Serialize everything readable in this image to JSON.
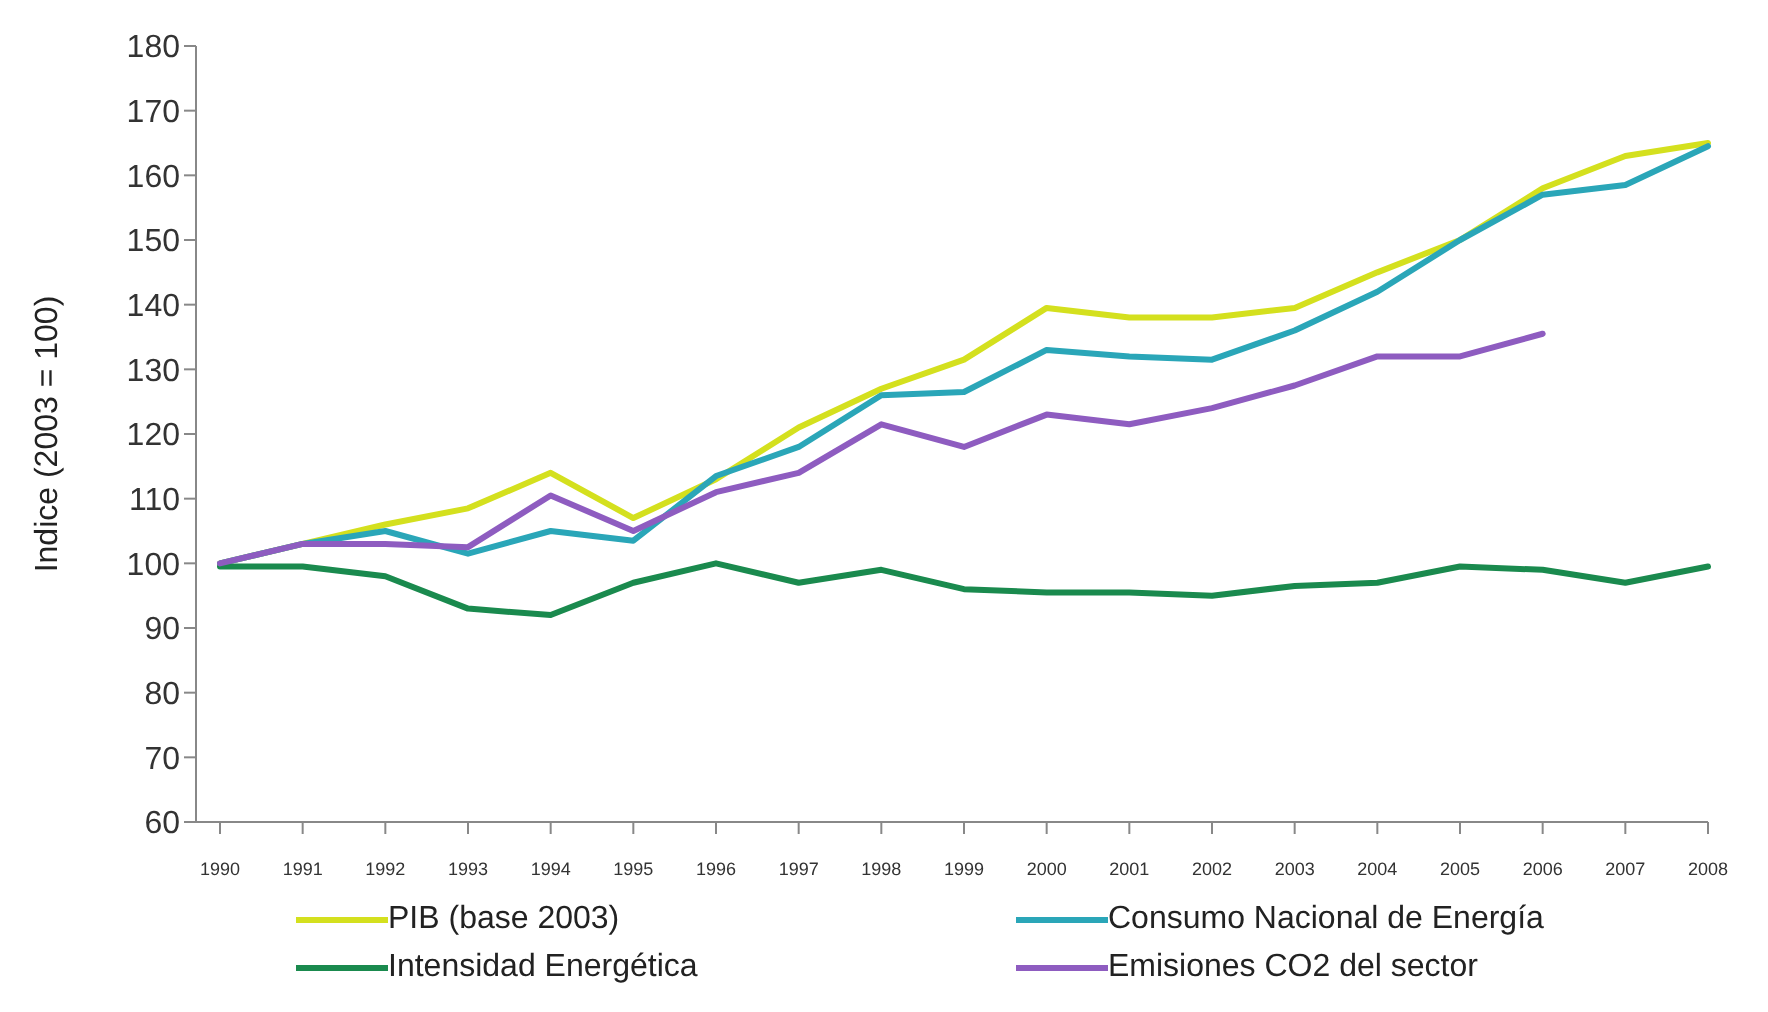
{
  "chart_data": {
    "type": "line",
    "ylabel": "Indice (2003 = 100)",
    "categories": [
      "1990",
      "1991",
      "1992",
      "1993",
      "1994",
      "1995",
      "1996",
      "1997",
      "1998",
      "1999",
      "2000",
      "2001",
      "2002",
      "2003",
      "2004",
      "2005",
      "2006",
      "2007",
      "2008"
    ],
    "series": [
      {
        "name": "PIB (base 2003)",
        "color": "#d4e01e",
        "values": [
          100,
          103,
          106,
          108.5,
          114,
          107,
          113,
          121,
          127,
          131.5,
          139.5,
          138,
          138,
          139.5,
          145,
          150,
          158,
          163,
          165
        ]
      },
      {
        "name": "Consumo Nacional de Energía",
        "color": "#2aa6b8",
        "values": [
          100,
          103,
          105,
          101.5,
          105,
          103.5,
          113.5,
          118,
          126,
          126.5,
          133,
          132,
          131.5,
          136,
          142,
          150,
          157,
          158.5,
          164.5
        ]
      },
      {
        "name": "Intensidad Energética",
        "color": "#1a8a4e",
        "values": [
          99.5,
          99.5,
          98,
          93,
          92,
          97,
          100,
          97,
          99,
          96,
          95.5,
          95.5,
          95,
          96.5,
          97,
          99.5,
          99,
          97,
          99.5
        ]
      },
      {
        "name": "Emisiones CO2 del sector",
        "color": "#8e5cc0",
        "values": [
          100,
          103,
          103,
          102.5,
          110.5,
          105,
          111,
          114,
          121.5,
          118,
          123,
          121.5,
          124,
          127.5,
          132,
          132,
          135.5,
          null,
          null
        ]
      }
    ],
    "ylim": [
      60,
      180
    ],
    "yticks": [
      60,
      70,
      80,
      90,
      100,
      110,
      120,
      130,
      140,
      150,
      160,
      170,
      180
    ],
    "grid": false,
    "legend": "bottom",
    "marker": "none",
    "line_style": "solid"
  }
}
